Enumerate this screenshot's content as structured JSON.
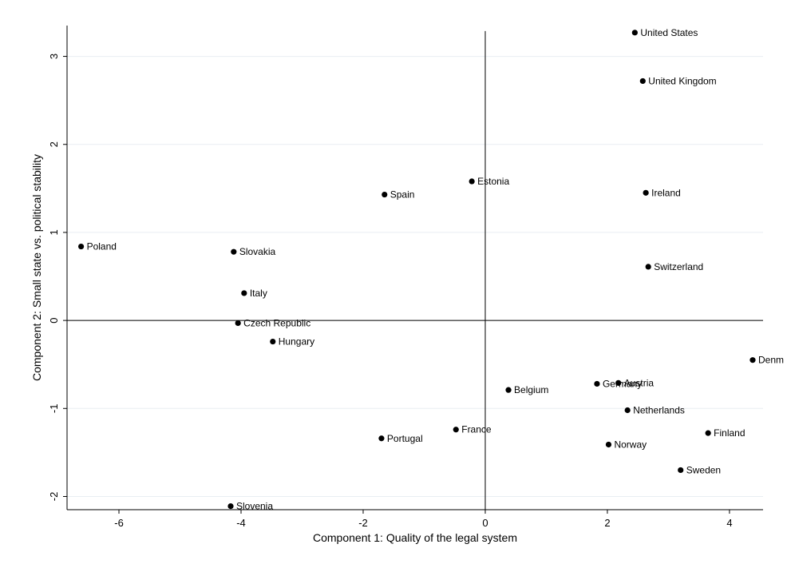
{
  "chart_data": {
    "type": "scatter",
    "xlabel": "Component 1: Quality of the legal system",
    "ylabel": "Component 2: Small state vs. political stability",
    "xlim": [
      -6.85,
      4.55
    ],
    "ylim": [
      -2.15,
      3.35
    ],
    "xticks": [
      -6,
      -4,
      -2,
      0,
      2,
      4
    ],
    "yticks": [
      -2,
      -1,
      0,
      1,
      2,
      3
    ],
    "grid": true,
    "reference_lines": {
      "x": 0,
      "y": 0
    },
    "points": [
      {
        "label": "United States",
        "x": 2.45,
        "y": 3.27
      },
      {
        "label": "United Kingdom",
        "x": 2.58,
        "y": 2.72
      },
      {
        "label": "Estonia",
        "x": -0.22,
        "y": 1.58
      },
      {
        "label": "Spain",
        "x": -1.65,
        "y": 1.43
      },
      {
        "label": "Ireland",
        "x": 2.63,
        "y": 1.45
      },
      {
        "label": "Poland",
        "x": -6.62,
        "y": 0.84
      },
      {
        "label": "Slovakia",
        "x": -4.12,
        "y": 0.78
      },
      {
        "label": "Switzerland",
        "x": 2.67,
        "y": 0.61
      },
      {
        "label": "Italy",
        "x": -3.95,
        "y": 0.31
      },
      {
        "label": "Czech Republic",
        "x": -4.05,
        "y": -0.03
      },
      {
        "label": "Hungary",
        "x": -3.48,
        "y": -0.24
      },
      {
        "label": "Denm",
        "x": 4.38,
        "y": -0.45
      },
      {
        "label": "Austria",
        "x": 2.18,
        "y": -0.71
      },
      {
        "label": "Germany",
        "x": 1.83,
        "y": -0.72
      },
      {
        "label": "Belgium",
        "x": 0.38,
        "y": -0.79
      },
      {
        "label": "Netherlands",
        "x": 2.33,
        "y": -1.02
      },
      {
        "label": "France",
        "x": -0.48,
        "y": -1.24
      },
      {
        "label": "Finland",
        "x": 3.65,
        "y": -1.28
      },
      {
        "label": "Portugal",
        "x": -1.7,
        "y": -1.34
      },
      {
        "label": "Norway",
        "x": 2.02,
        "y": -1.41
      },
      {
        "label": "Sweden",
        "x": 3.2,
        "y": -1.7
      },
      {
        "label": "Slovenia",
        "x": -4.17,
        "y": -2.11
      }
    ]
  }
}
